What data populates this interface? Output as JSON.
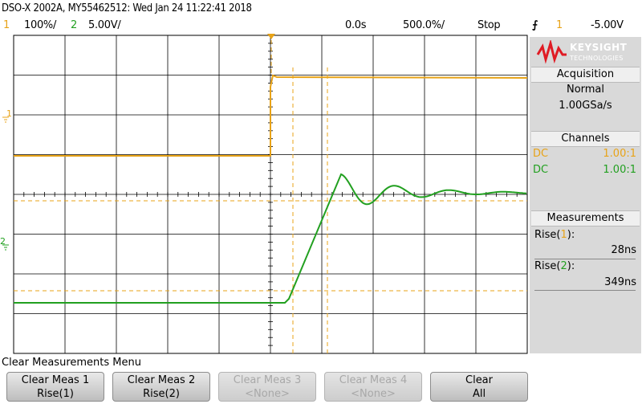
{
  "header": {
    "title": "DSO-X 2002A, MY55462512: Wed Jan 24 11:22:41 2018"
  },
  "status": {
    "ch1_num": "1",
    "ch1_scale": "100%/",
    "ch2_num": "2",
    "ch2_scale": "5.00V/",
    "time_delay": "0.0s",
    "time_scale": "500.0%/",
    "run_state": "Stop",
    "trigger_symbol": "⨍",
    "trigger_channel": "1",
    "trigger_level": "-5.00V"
  },
  "colors": {
    "ch1": "#e8a317",
    "ch2": "#22a020",
    "grid": "#000000"
  },
  "markers": {
    "ch1_label": "1",
    "ch2_label": "2"
  },
  "panel": {
    "logo_brand": "KEYSIGHT",
    "logo_sub": "TECHNOLOGIES",
    "acquisition": {
      "heading": "Acquisition",
      "mode": "Normal",
      "rate": "1.00GSa/s"
    },
    "channels": {
      "heading": "Channels",
      "rows": [
        {
          "coupling": "DC",
          "probe": "1.00:1"
        },
        {
          "coupling": "DC",
          "probe": "1.00:1"
        }
      ]
    },
    "measurements": {
      "heading": "Measurements",
      "items": [
        {
          "label": "Rise(",
          "channel": "1",
          "close": "):",
          "value": "28ns"
        },
        {
          "label": "Rise(",
          "channel": "2",
          "close": "):",
          "value": "349ns"
        }
      ]
    }
  },
  "menu": {
    "title": "Clear Measurements Menu",
    "softkeys": [
      {
        "line1": "Clear Meas 1",
        "line2": "Rise(1)",
        "enabled": true
      },
      {
        "line1": "Clear Meas 2",
        "line2": "Rise(2)",
        "enabled": true
      },
      {
        "line1": "Clear Meas 3",
        "line2": "<None>",
        "enabled": false
      },
      {
        "line1": "Clear Meas 4",
        "line2": "<None>",
        "enabled": false
      },
      {
        "line1": "Clear",
        "line2": "All",
        "enabled": true
      }
    ]
  }
}
